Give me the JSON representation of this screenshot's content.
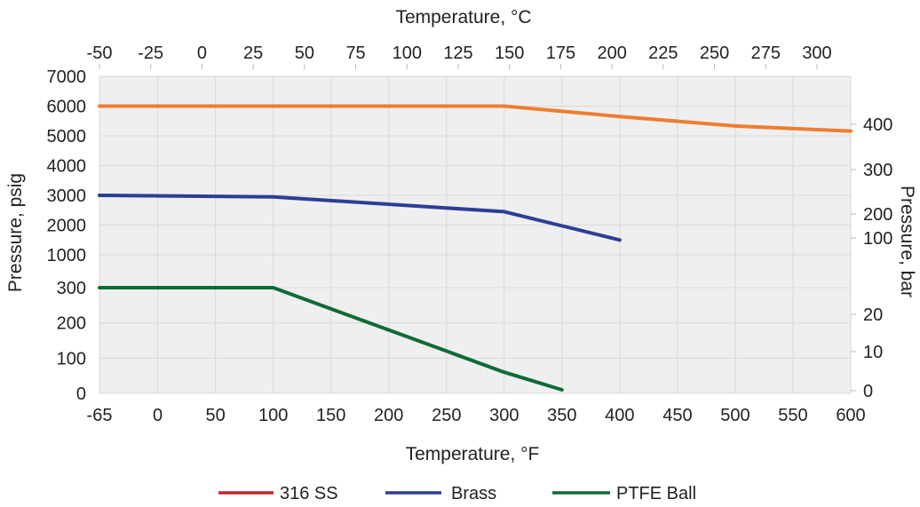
{
  "chart_data": {
    "type": "line",
    "x_label_top": "Temperature, °C",
    "x_label_bottom": "Temperature, °F",
    "y_label_left": "Pressure, psig",
    "y_label_right": "Pressure, bar",
    "x_ticks_bottom": [
      "-65",
      "0",
      "50",
      "100",
      "150",
      "200",
      "250",
      "300",
      "350",
      "400",
      "450",
      "500",
      "550",
      "600"
    ],
    "x_ticks_top": [
      "-50",
      "-25",
      "0",
      "25",
      "50",
      "75",
      "100",
      "125",
      "150",
      "175",
      "200",
      "225",
      "250",
      "275",
      "300"
    ],
    "y_ticks_left": [
      "0",
      "100",
      "200",
      "300",
      "1000",
      "2000",
      "3000",
      "4000",
      "5000",
      "6000",
      "7000"
    ],
    "y_ticks_right": [
      "0",
      "10",
      "20",
      "100",
      "200",
      "300",
      "400"
    ],
    "grid": true,
    "series": [
      {
        "name": "316 SS",
        "color": "#ee7d31",
        "x": [
          -65,
          100,
          300,
          400,
          500,
          600
        ],
        "y": [
          6000,
          6000,
          6000,
          5650,
          5330,
          5160
        ]
      },
      {
        "name": "Brass",
        "color": "#2c3e95",
        "x": [
          -65,
          100,
          300,
          400
        ],
        "y": [
          3000,
          2950,
          2450,
          1500
        ]
      },
      {
        "name": "PTFE Ball",
        "color": "#0e6b35",
        "x": [
          -65,
          100,
          300,
          350
        ],
        "y": [
          300,
          300,
          60,
          10
        ]
      }
    ],
    "legend": [
      {
        "name": "316 SS",
        "color": "#c1272d"
      },
      {
        "name": "Brass",
        "color": "#2c3e95"
      },
      {
        "name": "PTFE Ball",
        "color": "#0e6b35"
      }
    ]
  }
}
